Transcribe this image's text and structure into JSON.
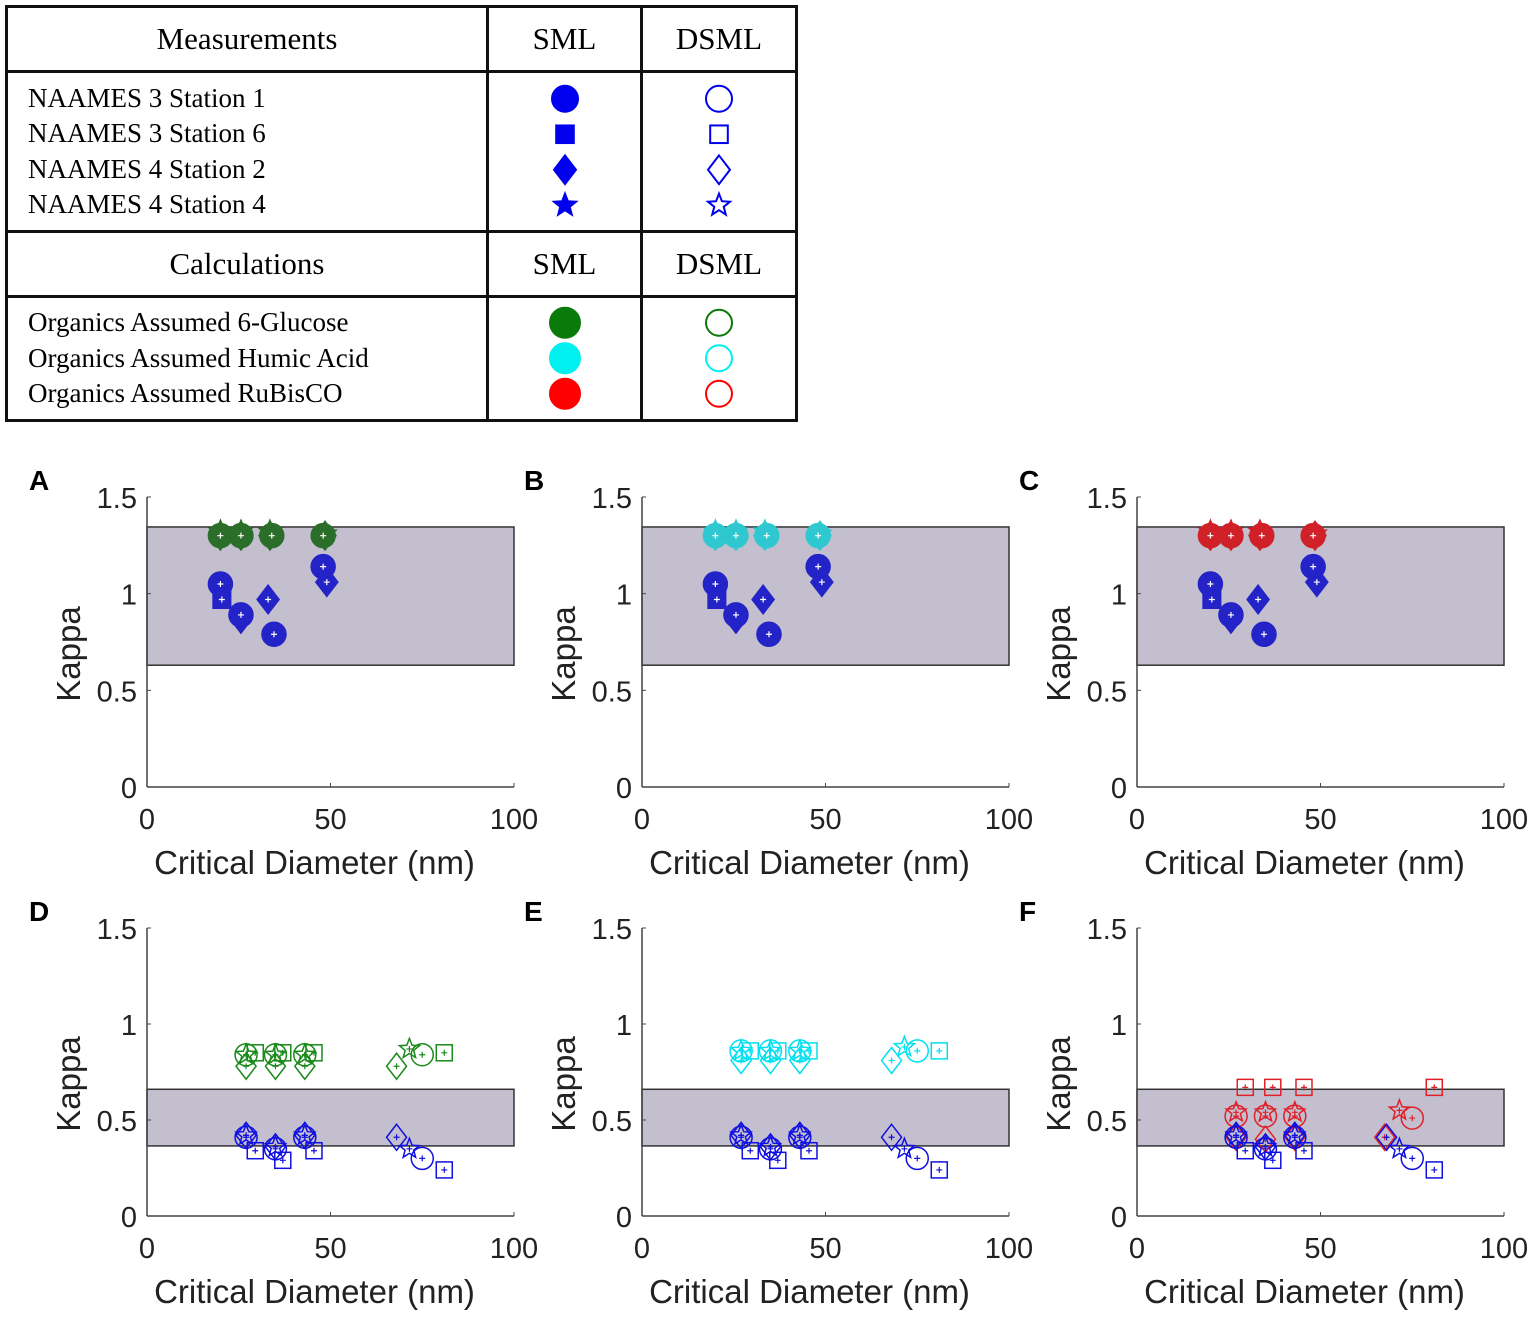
{
  "legend": {
    "header1": [
      "Measurements",
      "SML",
      "DSML"
    ],
    "measurements": [
      "NAAMES 3 Station 1",
      "NAAMES 3 Station 6",
      "NAAMES 4 Station 2",
      "NAAMES 4 Station 4"
    ],
    "measurement_markers": [
      "circle",
      "square",
      "diamond",
      "star"
    ],
    "measurement_color": "#0000ee",
    "header2": [
      "Calculations",
      "SML",
      "DSML"
    ],
    "calculations": [
      "Organics Assumed 6-Glucose",
      "Organics Assumed Humic Acid",
      "Organics Assumed RuBisCO"
    ],
    "calculation_colors": [
      "#0a7a0a",
      "#00f0f0",
      "#ff0000"
    ]
  },
  "chart_data": [
    {
      "panel": "A",
      "type": "scatter",
      "xlabel": "Critical Diameter (nm)",
      "ylabel": "Kappa",
      "xlim": [
        0,
        100
      ],
      "ylim": [
        0,
        1.5
      ],
      "xticks": [
        "0",
        "50",
        "100"
      ],
      "yticks": [
        "0",
        "0.5",
        "1",
        "1.5"
      ],
      "band": [
        0.63,
        1.345
      ],
      "series": [
        {
          "name": "Measurements SML",
          "color": "#2323c8",
          "filled": true,
          "points": [
            [
              20,
              1.05,
              "circle"
            ],
            [
              20.4,
              0.97,
              "square"
            ],
            [
              25.6,
              0.87,
              "diamond"
            ],
            [
              25.6,
              0.89,
              "circle"
            ],
            [
              33,
              0.97,
              "diamond"
            ],
            [
              34.6,
              0.79,
              "circle"
            ],
            [
              49,
              1.06,
              "diamond"
            ],
            [
              48,
              1.14,
              "circle"
            ]
          ]
        },
        {
          "name": "6-Glucose SML",
          "color": "#2a6e2a",
          "filled": true,
          "points": [
            [
              20,
              1.32,
              "star"
            ],
            [
              25.6,
              1.32,
              "star"
            ],
            [
              33.5,
              1.32,
              "star"
            ],
            [
              48.5,
              1.31,
              "star"
            ],
            [
              20,
              1.3,
              "diamond"
            ],
            [
              25.6,
              1.3,
              "diamond"
            ],
            [
              33.5,
              1.3,
              "diamond"
            ],
            [
              48.5,
              1.3,
              "diamond"
            ],
            [
              20,
              1.3,
              "circle"
            ],
            [
              25.6,
              1.3,
              "circle"
            ],
            [
              34,
              1.3,
              "circle"
            ],
            [
              48,
              1.3,
              "circle"
            ]
          ]
        }
      ]
    },
    {
      "panel": "B",
      "type": "scatter",
      "xlabel": "Critical Diameter (nm)",
      "ylabel": "Kappa",
      "xlim": [
        0,
        100
      ],
      "ylim": [
        0,
        1.5
      ],
      "xticks": [
        "0",
        "50",
        "100"
      ],
      "yticks": [
        "0",
        "0.5",
        "1",
        "1.5"
      ],
      "band": [
        0.63,
        1.345
      ],
      "series": [
        {
          "name": "Measurements SML",
          "color": "#2323c8",
          "filled": true,
          "points": [
            [
              20,
              1.05,
              "circle"
            ],
            [
              20.4,
              0.97,
              "square"
            ],
            [
              25.6,
              0.87,
              "diamond"
            ],
            [
              25.6,
              0.89,
              "circle"
            ],
            [
              33,
              0.97,
              "diamond"
            ],
            [
              34.6,
              0.79,
              "circle"
            ],
            [
              49,
              1.06,
              "diamond"
            ],
            [
              48,
              1.14,
              "circle"
            ]
          ]
        },
        {
          "name": "Humic Acid SML",
          "color": "#30c8d0",
          "filled": true,
          "points": [
            [
              20,
              1.32,
              "star"
            ],
            [
              25.6,
              1.32,
              "star"
            ],
            [
              33.5,
              1.32,
              "star"
            ],
            [
              48.5,
              1.31,
              "star"
            ],
            [
              20,
              1.3,
              "diamond"
            ],
            [
              25.6,
              1.3,
              "diamond"
            ],
            [
              33.5,
              1.3,
              "diamond"
            ],
            [
              48.5,
              1.3,
              "diamond"
            ],
            [
              20,
              1.3,
              "circle"
            ],
            [
              25.6,
              1.3,
              "circle"
            ],
            [
              34,
              1.3,
              "circle"
            ],
            [
              48,
              1.3,
              "circle"
            ]
          ]
        }
      ]
    },
    {
      "panel": "C",
      "type": "scatter",
      "xlabel": "Critical Diameter (nm)",
      "ylabel": "Kappa",
      "xlim": [
        0,
        100
      ],
      "ylim": [
        0,
        1.5
      ],
      "xticks": [
        "0",
        "50",
        "100"
      ],
      "yticks": [
        "0",
        "0.5",
        "1",
        "1.5"
      ],
      "band": [
        0.63,
        1.345
      ],
      "series": [
        {
          "name": "Measurements SML",
          "color": "#2323c8",
          "filled": true,
          "points": [
            [
              20,
              1.05,
              "circle"
            ],
            [
              20.4,
              0.97,
              "square"
            ],
            [
              25.6,
              0.87,
              "diamond"
            ],
            [
              25.6,
              0.89,
              "circle"
            ],
            [
              33,
              0.97,
              "diamond"
            ],
            [
              34.6,
              0.79,
              "circle"
            ],
            [
              49,
              1.06,
              "diamond"
            ],
            [
              48,
              1.14,
              "circle"
            ]
          ]
        },
        {
          "name": "RuBisCO SML",
          "color": "#d02028",
          "filled": true,
          "points": [
            [
              20,
              1.32,
              "star"
            ],
            [
              25.6,
              1.32,
              "star"
            ],
            [
              33.5,
              1.32,
              "star"
            ],
            [
              48.5,
              1.31,
              "star"
            ],
            [
              20,
              1.3,
              "diamond"
            ],
            [
              25.6,
              1.3,
              "diamond"
            ],
            [
              33.5,
              1.3,
              "diamond"
            ],
            [
              48.5,
              1.3,
              "diamond"
            ],
            [
              20,
              1.3,
              "circle"
            ],
            [
              25.6,
              1.3,
              "circle"
            ],
            [
              34,
              1.3,
              "circle"
            ],
            [
              48,
              1.3,
              "circle"
            ]
          ]
        }
      ]
    },
    {
      "panel": "D",
      "type": "scatter",
      "xlabel": "Critical Diameter (nm)",
      "ylabel": "Kappa",
      "xlim": [
        0,
        100
      ],
      "ylim": [
        0,
        1.5
      ],
      "xticks": [
        "0",
        "50",
        "100"
      ],
      "yticks": [
        "0",
        "0.5",
        "1",
        "1.5"
      ],
      "band": [
        0.365,
        0.66
      ],
      "series": [
        {
          "name": "Measurements DSML",
          "color": "#1010e0",
          "filled": false,
          "points": [
            [
              27,
              0.42,
              "diamond"
            ],
            [
              27,
              0.42,
              "star"
            ],
            [
              27,
              0.41,
              "circle"
            ],
            [
              29.5,
              0.34,
              "square"
            ],
            [
              35,
              0.36,
              "diamond"
            ],
            [
              35,
              0.36,
              "star"
            ],
            [
              35,
              0.35,
              "circle"
            ],
            [
              37,
              0.29,
              "square"
            ],
            [
              43,
              0.42,
              "diamond"
            ],
            [
              43,
              0.42,
              "star"
            ],
            [
              43,
              0.41,
              "circle"
            ],
            [
              45.5,
              0.34,
              "square"
            ],
            [
              68,
              0.41,
              "diamond"
            ],
            [
              71.5,
              0.35,
              "star"
            ],
            [
              75,
              0.3,
              "circle"
            ],
            [
              81,
              0.24,
              "square"
            ]
          ]
        },
        {
          "name": "6-Glucose DSML",
          "color": "#1a8a1a",
          "filled": false,
          "points": [
            [
              27,
              0.78,
              "diamond"
            ],
            [
              27,
              0.84,
              "star"
            ],
            [
              27,
              0.84,
              "circle"
            ],
            [
              29.5,
              0.85,
              "square"
            ],
            [
              35,
              0.78,
              "diamond"
            ],
            [
              35,
              0.84,
              "star"
            ],
            [
              35,
              0.84,
              "circle"
            ],
            [
              37,
              0.85,
              "square"
            ],
            [
              43,
              0.78,
              "diamond"
            ],
            [
              43,
              0.84,
              "star"
            ],
            [
              43,
              0.84,
              "circle"
            ],
            [
              45.5,
              0.85,
              "square"
            ],
            [
              68,
              0.78,
              "diamond"
            ],
            [
              71.5,
              0.87,
              "star"
            ],
            [
              75,
              0.84,
              "circle"
            ],
            [
              81,
              0.85,
              "square"
            ]
          ]
        }
      ]
    },
    {
      "panel": "E",
      "type": "scatter",
      "xlabel": "Critical Diameter (nm)",
      "ylabel": "Kappa",
      "xlim": [
        0,
        100
      ],
      "ylim": [
        0,
        1.5
      ],
      "xticks": [
        "0",
        "50",
        "100"
      ],
      "yticks": [
        "0",
        "0.5",
        "1",
        "1.5"
      ],
      "band": [
        0.365,
        0.66
      ],
      "series": [
        {
          "name": "Measurements DSML",
          "color": "#1010e0",
          "filled": false,
          "points": [
            [
              27,
              0.42,
              "diamond"
            ],
            [
              27,
              0.42,
              "star"
            ],
            [
              27,
              0.41,
              "circle"
            ],
            [
              29.5,
              0.34,
              "square"
            ],
            [
              35,
              0.36,
              "diamond"
            ],
            [
              35,
              0.36,
              "star"
            ],
            [
              35,
              0.35,
              "circle"
            ],
            [
              37,
              0.29,
              "square"
            ],
            [
              43,
              0.42,
              "diamond"
            ],
            [
              43,
              0.42,
              "star"
            ],
            [
              43,
              0.41,
              "circle"
            ],
            [
              45.5,
              0.34,
              "square"
            ],
            [
              68,
              0.41,
              "diamond"
            ],
            [
              71.5,
              0.35,
              "star"
            ],
            [
              75,
              0.3,
              "circle"
            ],
            [
              81,
              0.24,
              "square"
            ]
          ]
        },
        {
          "name": "Humic Acid DSML",
          "color": "#00e0f0",
          "filled": false,
          "points": [
            [
              27,
              0.81,
              "diamond"
            ],
            [
              27,
              0.86,
              "star"
            ],
            [
              27,
              0.86,
              "circle"
            ],
            [
              29.5,
              0.86,
              "square"
            ],
            [
              35,
              0.81,
              "diamond"
            ],
            [
              35,
              0.86,
              "star"
            ],
            [
              35,
              0.86,
              "circle"
            ],
            [
              37,
              0.86,
              "square"
            ],
            [
              43,
              0.81,
              "diamond"
            ],
            [
              43,
              0.86,
              "star"
            ],
            [
              43,
              0.86,
              "circle"
            ],
            [
              45.5,
              0.86,
              "square"
            ],
            [
              68,
              0.81,
              "diamond"
            ],
            [
              71.5,
              0.88,
              "star"
            ],
            [
              75,
              0.86,
              "circle"
            ],
            [
              81,
              0.86,
              "square"
            ]
          ]
        }
      ]
    },
    {
      "panel": "F",
      "type": "scatter",
      "xlabel": "Critical Diameter (nm)",
      "ylabel": "Kappa",
      "xlim": [
        0,
        100
      ],
      "ylim": [
        0,
        1.5
      ],
      "xticks": [
        "0",
        "50",
        "100"
      ],
      "yticks": [
        "0",
        "0.5",
        "1",
        "1.5"
      ],
      "band": [
        0.365,
        0.66
      ],
      "series": [
        {
          "name": "Measurements DSML",
          "color": "#1010e0",
          "filled": false,
          "points": [
            [
              27,
              0.42,
              "diamond"
            ],
            [
              27,
              0.42,
              "star"
            ],
            [
              27,
              0.41,
              "circle"
            ],
            [
              29.5,
              0.34,
              "square"
            ],
            [
              35,
              0.36,
              "diamond"
            ],
            [
              35,
              0.36,
              "star"
            ],
            [
              35,
              0.35,
              "circle"
            ],
            [
              37,
              0.29,
              "square"
            ],
            [
              43,
              0.42,
              "diamond"
            ],
            [
              43,
              0.42,
              "star"
            ],
            [
              43,
              0.41,
              "circle"
            ],
            [
              45.5,
              0.34,
              "square"
            ],
            [
              68,
              0.41,
              "diamond"
            ],
            [
              71.5,
              0.35,
              "star"
            ],
            [
              75,
              0.3,
              "circle"
            ],
            [
              81,
              0.24,
              "square"
            ]
          ]
        },
        {
          "name": "RuBisCO DSML",
          "color": "#e02028",
          "filled": false,
          "points": [
            [
              27,
              0.41,
              "diamond"
            ],
            [
              27,
              0.54,
              "star"
            ],
            [
              27,
              0.52,
              "circle"
            ],
            [
              29.5,
              0.67,
              "square"
            ],
            [
              35,
              0.4,
              "diamond"
            ],
            [
              35,
              0.54,
              "star"
            ],
            [
              35,
              0.52,
              "circle"
            ],
            [
              37,
              0.67,
              "square"
            ],
            [
              43,
              0.41,
              "diamond"
            ],
            [
              43,
              0.54,
              "star"
            ],
            [
              43,
              0.52,
              "circle"
            ],
            [
              45.5,
              0.67,
              "square"
            ],
            [
              67.5,
              0.41,
              "diamond"
            ],
            [
              71.5,
              0.55,
              "star"
            ],
            [
              75,
              0.51,
              "circle"
            ],
            [
              81,
              0.67,
              "square"
            ]
          ]
        }
      ]
    }
  ]
}
